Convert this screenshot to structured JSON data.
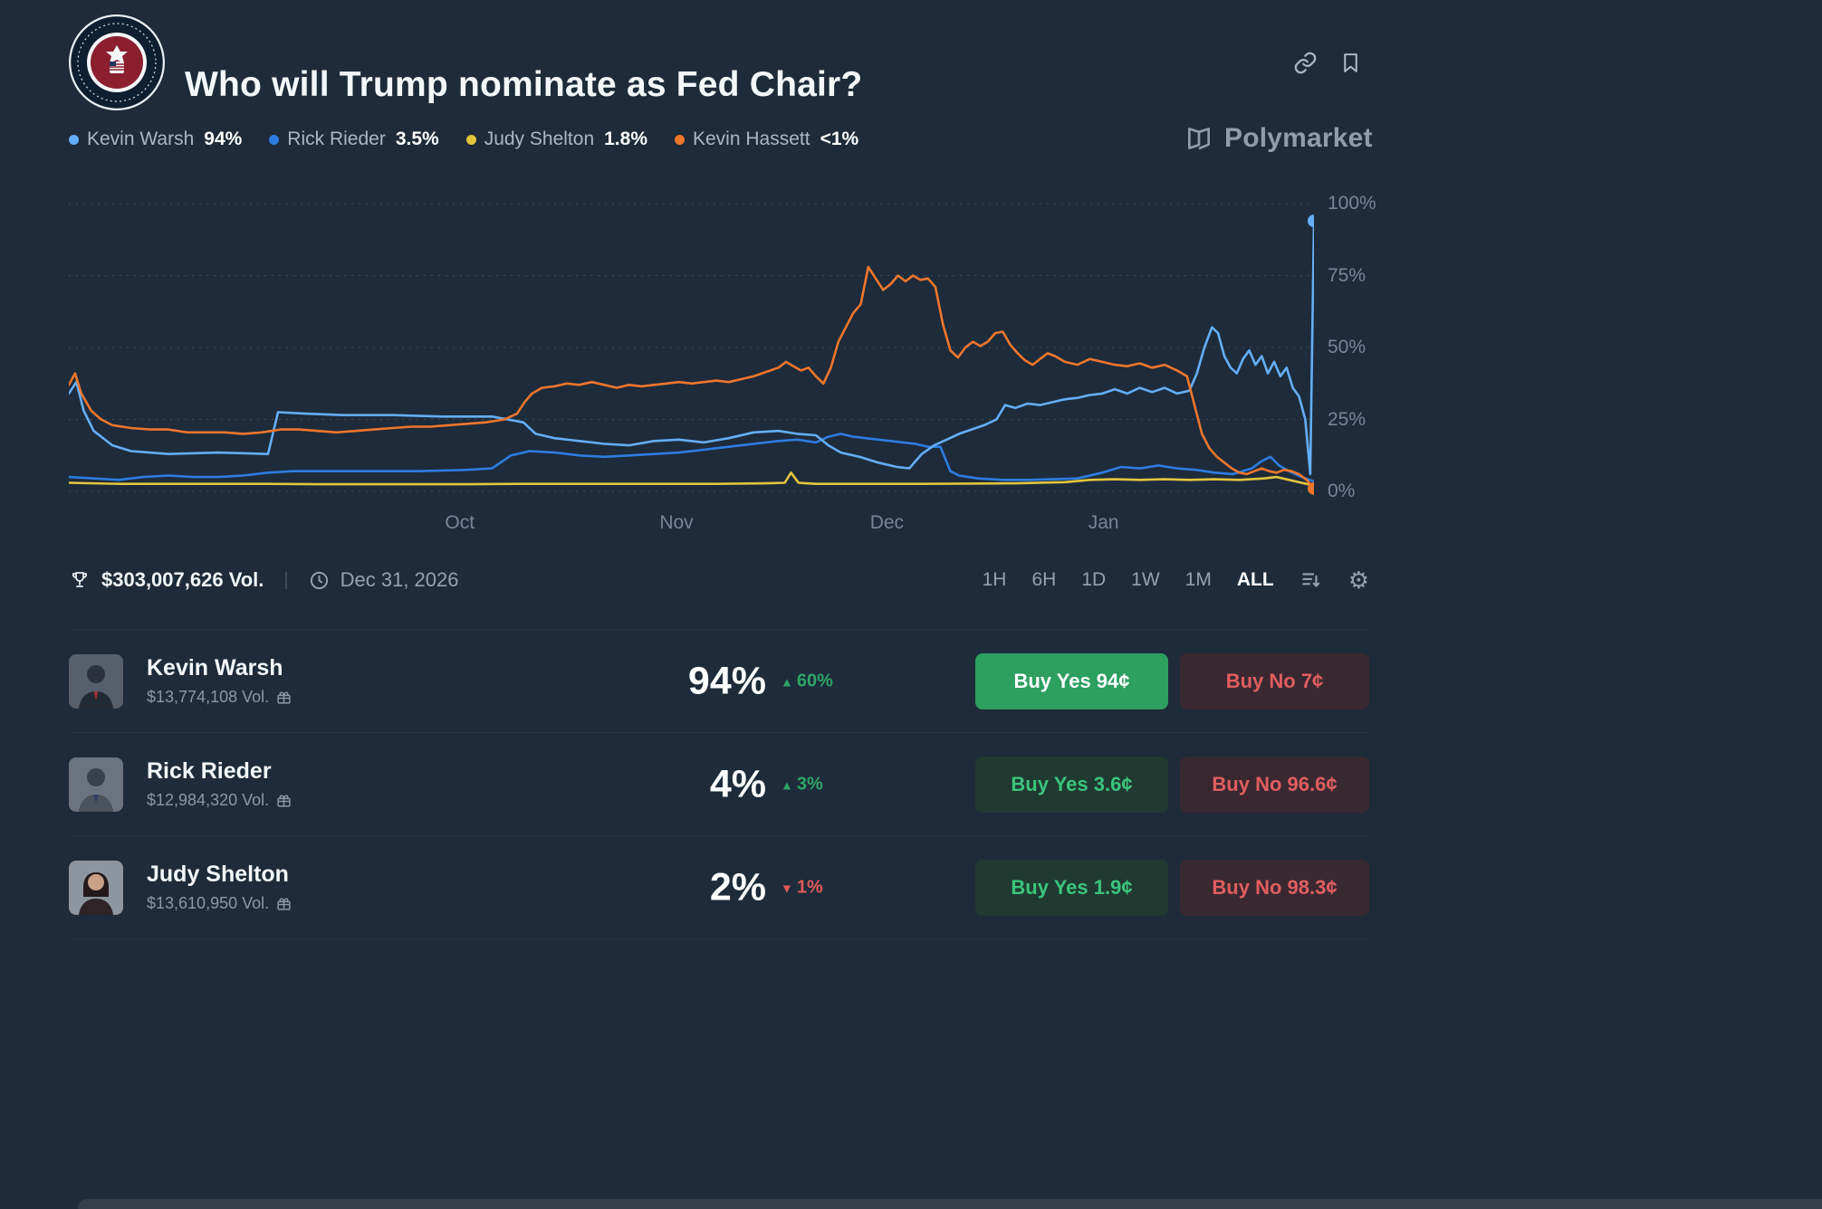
{
  "page": {
    "title": "Who will Trump nominate as Fed Chair?"
  },
  "brand": {
    "name": "Polymarket"
  },
  "icons": {
    "link": "link-icon",
    "bookmark": "bookmark-icon",
    "trophy": "trophy-icon",
    "clock": "clock-icon",
    "sort": "sort-desc-icon",
    "settings": "gear-icon",
    "gift": "gift-icon",
    "gear_glyph": "⚙"
  },
  "legend": {
    "items": [
      {
        "label": "Kevin Warsh",
        "value": "94%",
        "color": "#64aef7"
      },
      {
        "label": "Rick Rieder",
        "value": "3.5%",
        "color": "#2d7de0"
      },
      {
        "label": "Judy Shelton",
        "value": "1.8%",
        "color": "#e3c53d"
      },
      {
        "label": "Kevin Hassett",
        "value": "<1%",
        "color": "#f0762c"
      }
    ]
  },
  "stats": {
    "volume": "$303,007,626 Vol.",
    "separator": "|",
    "end_date": "Dec 31, 2026"
  },
  "controls": {
    "ranges": [
      "1H",
      "6H",
      "1D",
      "1W",
      "1M",
      "ALL"
    ],
    "active": "ALL"
  },
  "rows": [
    {
      "name": "Kevin Warsh",
      "volume": "$13,774,108 Vol.",
      "chance": "94%",
      "change": {
        "icon": "▲",
        "text": "60%",
        "dir": "up"
      },
      "yes": "Buy Yes 94¢",
      "no": "Buy No 7¢"
    },
    {
      "name": "Rick Rieder",
      "volume": "$12,984,320 Vol.",
      "chance": "4%",
      "change": {
        "icon": "▲",
        "text": "3%",
        "dir": "up"
      },
      "yes": "Buy Yes 3.6¢",
      "no": "Buy No 96.6¢"
    },
    {
      "name": "Judy Shelton",
      "volume": "$13,610,950 Vol.",
      "chance": "2%",
      "change": {
        "icon": "▼",
        "text": "1%",
        "dir": "down"
      },
      "yes": "Buy Yes 1.9¢",
      "no": "Buy No 98.3¢"
    }
  ],
  "chart_data": {
    "type": "line",
    "title": "Who will Trump nominate as Fed Chair?",
    "ylim": [
      0,
      100
    ],
    "grid": "dotted-horizontal",
    "legend_position": "top-left",
    "yticks": [
      {
        "label": "100%",
        "value": 100
      },
      {
        "label": "75%",
        "value": 75
      },
      {
        "label": "50%",
        "value": 50
      },
      {
        "label": "25%",
        "value": 25
      },
      {
        "label": "0%",
        "value": 0
      }
    ],
    "xticks": [
      {
        "label": "Oct",
        "pos": 0.314
      },
      {
        "label": "Nov",
        "pos": 0.488
      },
      {
        "label": "Dec",
        "pos": 0.657
      },
      {
        "label": "Jan",
        "pos": 0.831
      }
    ],
    "series": [
      {
        "name": "Judy Shelton",
        "color": "#e3c53d",
        "points": [
          [
            0,
            3
          ],
          [
            4,
            2.6
          ],
          [
            8,
            2.6
          ],
          [
            12,
            2.6
          ],
          [
            16,
            2.6
          ],
          [
            20,
            2.5
          ],
          [
            24,
            2.5
          ],
          [
            28,
            2.5
          ],
          [
            32,
            2.5
          ],
          [
            36,
            2.6
          ],
          [
            40,
            2.6
          ],
          [
            44,
            2.6
          ],
          [
            48,
            2.6
          ],
          [
            52,
            2.6
          ],
          [
            56,
            2.8
          ],
          [
            57.5,
            3
          ],
          [
            58,
            6.5
          ],
          [
            58.6,
            3
          ],
          [
            60,
            2.6
          ],
          [
            64,
            2.6
          ],
          [
            68,
            2.6
          ],
          [
            72,
            2.7
          ],
          [
            76,
            2.8
          ],
          [
            80,
            3.2
          ],
          [
            82,
            4
          ],
          [
            84,
            4.2
          ],
          [
            86,
            4
          ],
          [
            88,
            4.2
          ],
          [
            90,
            4
          ],
          [
            92,
            4.2
          ],
          [
            94,
            4
          ],
          [
            96,
            4.5
          ],
          [
            97,
            5
          ],
          [
            98,
            4
          ],
          [
            99,
            3
          ],
          [
            100,
            2
          ]
        ]
      },
      {
        "name": "Rick Rieder",
        "color": "#2d7de0",
        "points": [
          [
            0,
            5
          ],
          [
            2,
            4.5
          ],
          [
            4,
            4
          ],
          [
            6,
            5
          ],
          [
            8,
            5.5
          ],
          [
            10,
            5
          ],
          [
            12,
            5
          ],
          [
            14,
            5.5
          ],
          [
            16,
            6.5
          ],
          [
            18,
            7
          ],
          [
            20,
            7
          ],
          [
            24,
            7
          ],
          [
            28,
            7
          ],
          [
            32,
            7.5
          ],
          [
            34,
            8
          ],
          [
            35.5,
            12.5
          ],
          [
            37,
            14
          ],
          [
            39,
            13.5
          ],
          [
            41,
            12.5
          ],
          [
            43,
            12
          ],
          [
            45,
            12.5
          ],
          [
            47,
            13
          ],
          [
            49,
            13.5
          ],
          [
            51,
            14.5
          ],
          [
            53,
            15.5
          ],
          [
            55,
            16.5
          ],
          [
            57,
            17.5
          ],
          [
            58.5,
            18
          ],
          [
            60,
            17
          ],
          [
            61,
            19
          ],
          [
            62,
            20
          ],
          [
            63,
            19
          ],
          [
            64,
            18.5
          ],
          [
            65,
            18
          ],
          [
            66,
            17.5
          ],
          [
            67,
            17
          ],
          [
            68,
            16.5
          ],
          [
            69,
            15.5
          ],
          [
            70,
            15.5
          ],
          [
            70.8,
            7
          ],
          [
            71.5,
            5.5
          ],
          [
            73,
            4.5
          ],
          [
            75,
            4
          ],
          [
            77,
            4
          ],
          [
            79,
            4.2
          ],
          [
            81,
            4.5
          ],
          [
            83,
            6.5
          ],
          [
            84.5,
            8.5
          ],
          [
            86,
            8
          ],
          [
            87.5,
            9
          ],
          [
            89,
            8
          ],
          [
            90.5,
            7.5
          ],
          [
            92,
            6.5
          ],
          [
            93.5,
            6
          ],
          [
            95,
            8
          ],
          [
            95.8,
            10.5
          ],
          [
            96.5,
            12
          ],
          [
            97.2,
            9
          ],
          [
            98,
            7
          ],
          [
            99,
            5
          ],
          [
            100,
            3.5
          ]
        ]
      },
      {
        "name": "Kevin Warsh",
        "color": "#64aef7",
        "points": [
          [
            0,
            34
          ],
          [
            0.6,
            38
          ],
          [
            1.2,
            28
          ],
          [
            2,
            21
          ],
          [
            3.5,
            16
          ],
          [
            5,
            14
          ],
          [
            8,
            13
          ],
          [
            12,
            13.5
          ],
          [
            16,
            13
          ],
          [
            16.8,
            27.5
          ],
          [
            19,
            27
          ],
          [
            22,
            26.5
          ],
          [
            26,
            26.5
          ],
          [
            30,
            26
          ],
          [
            34,
            26
          ],
          [
            36.5,
            24
          ],
          [
            37.5,
            20
          ],
          [
            39,
            18.5
          ],
          [
            41,
            17.5
          ],
          [
            43,
            16.5
          ],
          [
            45,
            16
          ],
          [
            47,
            17.5
          ],
          [
            49,
            18
          ],
          [
            51,
            17
          ],
          [
            53,
            18.5
          ],
          [
            55,
            20.5
          ],
          [
            57,
            21
          ],
          [
            58.5,
            20
          ],
          [
            60,
            19.5
          ],
          [
            61,
            16
          ],
          [
            62,
            13.5
          ],
          [
            63.5,
            12
          ],
          [
            65,
            10
          ],
          [
            66.5,
            8.5
          ],
          [
            67.5,
            8
          ],
          [
            68.5,
            13
          ],
          [
            69.5,
            16
          ],
          [
            70.5,
            18
          ],
          [
            71.5,
            20
          ],
          [
            72.5,
            21.5
          ],
          [
            73.5,
            23
          ],
          [
            74.5,
            25
          ],
          [
            75.2,
            30
          ],
          [
            76,
            29
          ],
          [
            77,
            30.5
          ],
          [
            78,
            30
          ],
          [
            79,
            31
          ],
          [
            80,
            32
          ],
          [
            81,
            32.5
          ],
          [
            82,
            33.5
          ],
          [
            83,
            34
          ],
          [
            84,
            35.5
          ],
          [
            85,
            34
          ],
          [
            86,
            36
          ],
          [
            87,
            34.5
          ],
          [
            88,
            36
          ],
          [
            89,
            34
          ],
          [
            90,
            35
          ],
          [
            90.6,
            41
          ],
          [
            91.2,
            50
          ],
          [
            91.8,
            57
          ],
          [
            92.3,
            55
          ],
          [
            92.8,
            47
          ],
          [
            93.3,
            43
          ],
          [
            93.8,
            41
          ],
          [
            94.3,
            46
          ],
          [
            94.8,
            49
          ],
          [
            95.3,
            44
          ],
          [
            95.8,
            47
          ],
          [
            96.3,
            41
          ],
          [
            96.8,
            45
          ],
          [
            97.3,
            40
          ],
          [
            97.8,
            43
          ],
          [
            98.3,
            36
          ],
          [
            98.8,
            33
          ],
          [
            99.3,
            25
          ],
          [
            99.7,
            6
          ],
          [
            100,
            94
          ]
        ]
      },
      {
        "name": "Kevin Hassett",
        "color": "#f0762c",
        "points": [
          [
            0,
            37
          ],
          [
            0.5,
            41
          ],
          [
            1,
            34
          ],
          [
            1.8,
            28
          ],
          [
            2.6,
            25
          ],
          [
            3.5,
            23
          ],
          [
            5,
            22
          ],
          [
            6.5,
            21.5
          ],
          [
            8,
            21.5
          ],
          [
            9.5,
            20.5
          ],
          [
            11,
            20.5
          ],
          [
            12.5,
            20.5
          ],
          [
            14,
            20
          ],
          [
            15.5,
            20.5
          ],
          [
            17,
            21.5
          ],
          [
            18.5,
            21.5
          ],
          [
            20,
            21
          ],
          [
            21.5,
            20.5
          ],
          [
            23,
            21
          ],
          [
            24.5,
            21.5
          ],
          [
            26,
            22
          ],
          [
            27.5,
            22.5
          ],
          [
            29,
            22.5
          ],
          [
            30.5,
            23
          ],
          [
            32,
            23.5
          ],
          [
            33.5,
            24
          ],
          [
            35,
            25
          ],
          [
            36,
            27
          ],
          [
            36.6,
            31
          ],
          [
            37.2,
            34
          ],
          [
            38,
            36
          ],
          [
            39,
            36.5
          ],
          [
            40,
            37.5
          ],
          [
            41,
            37
          ],
          [
            42,
            38
          ],
          [
            43,
            37
          ],
          [
            44,
            36
          ],
          [
            45,
            37
          ],
          [
            46,
            36.5
          ],
          [
            47,
            37
          ],
          [
            48,
            37.5
          ],
          [
            49,
            38
          ],
          [
            50,
            37.5
          ],
          [
            51,
            38
          ],
          [
            52,
            38.5
          ],
          [
            53,
            38
          ],
          [
            54,
            39
          ],
          [
            55,
            40
          ],
          [
            56,
            41.5
          ],
          [
            57,
            43
          ],
          [
            57.6,
            45
          ],
          [
            58.2,
            43.5
          ],
          [
            58.8,
            42
          ],
          [
            59.4,
            43
          ],
          [
            60,
            40
          ],
          [
            60.6,
            37.5
          ],
          [
            61.2,
            43
          ],
          [
            61.8,
            52
          ],
          [
            62.4,
            57
          ],
          [
            63,
            62
          ],
          [
            63.6,
            65
          ],
          [
            64.2,
            78
          ],
          [
            64.8,
            74
          ],
          [
            65.4,
            70
          ],
          [
            66,
            72
          ],
          [
            66.6,
            75
          ],
          [
            67.2,
            73
          ],
          [
            67.8,
            75
          ],
          [
            68.4,
            73.5
          ],
          [
            69,
            74
          ],
          [
            69.6,
            71
          ],
          [
            70.2,
            58
          ],
          [
            70.8,
            49
          ],
          [
            71.4,
            46.5
          ],
          [
            72,
            50
          ],
          [
            72.6,
            52
          ],
          [
            73.2,
            50.5
          ],
          [
            73.8,
            52
          ],
          [
            74.4,
            55
          ],
          [
            75,
            55.5
          ],
          [
            75.6,
            51
          ],
          [
            76.2,
            48
          ],
          [
            76.8,
            45.5
          ],
          [
            77.4,
            44
          ],
          [
            78,
            46
          ],
          [
            78.6,
            48
          ],
          [
            79.2,
            47
          ],
          [
            80,
            45
          ],
          [
            81,
            44
          ],
          [
            82,
            46
          ],
          [
            83,
            45
          ],
          [
            84,
            44
          ],
          [
            85,
            43.5
          ],
          [
            86,
            44.5
          ],
          [
            87,
            43
          ],
          [
            88,
            44
          ],
          [
            89,
            42
          ],
          [
            89.8,
            40
          ],
          [
            90.4,
            30
          ],
          [
            91,
            20
          ],
          [
            91.6,
            15
          ],
          [
            92.2,
            12
          ],
          [
            92.8,
            10
          ],
          [
            93.4,
            8
          ],
          [
            94,
            6.5
          ],
          [
            94.6,
            6
          ],
          [
            95.2,
            7
          ],
          [
            95.8,
            8
          ],
          [
            96.4,
            7
          ],
          [
            97,
            6.5
          ],
          [
            97.6,
            7.5
          ],
          [
            98.2,
            7
          ],
          [
            98.8,
            6
          ],
          [
            99.4,
            4
          ],
          [
            100,
            1
          ]
        ]
      }
    ],
    "end_dots": [
      {
        "series": "Kevin Warsh",
        "color": "#64aef7",
        "x": 100,
        "y": 94
      },
      {
        "series": "Kevin Hassett",
        "color": "#f0762c",
        "x": 100,
        "y": 1
      }
    ]
  }
}
